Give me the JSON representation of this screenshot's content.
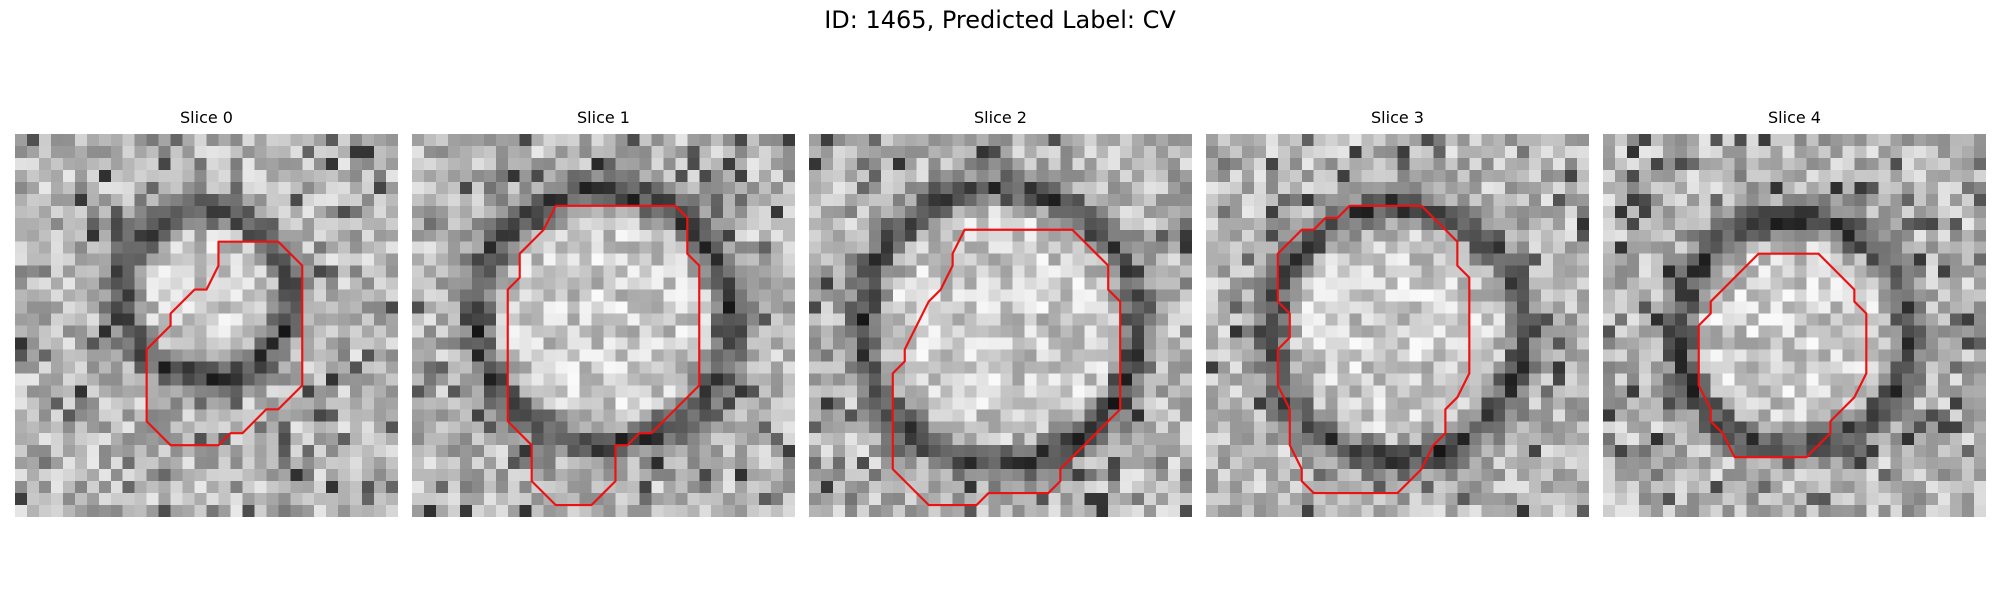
{
  "figure": {
    "title": "ID: 1465, Predicted Label: CV"
  },
  "panels": [
    {
      "title": "Slice 0",
      "seed": 11,
      "ring": [
        0.5,
        0.42,
        0.22
      ],
      "contour": [
        [
          17,
          9
        ],
        [
          22,
          9
        ],
        [
          24,
          11
        ],
        [
          24,
          21
        ],
        [
          22,
          23
        ],
        [
          21,
          23
        ],
        [
          19,
          25
        ],
        [
          18,
          25
        ],
        [
          17,
          26
        ],
        [
          13,
          26
        ],
        [
          12,
          25
        ],
        [
          11,
          24
        ],
        [
          11,
          18
        ],
        [
          13,
          16
        ],
        [
          13,
          15
        ],
        [
          15,
          13
        ],
        [
          16,
          13
        ],
        [
          17,
          11
        ]
      ]
    },
    {
      "title": "Slice 1",
      "seed": 23,
      "ring": [
        0.5,
        0.48,
        0.33
      ],
      "contour": [
        [
          12,
          6
        ],
        [
          22,
          6
        ],
        [
          23,
          7
        ],
        [
          23,
          10
        ],
        [
          24,
          11
        ],
        [
          24,
          21
        ],
        [
          22,
          23
        ],
        [
          20,
          25
        ],
        [
          19,
          25
        ],
        [
          18,
          26
        ],
        [
          17,
          26
        ],
        [
          17,
          29
        ],
        [
          16,
          30
        ],
        [
          15,
          31
        ],
        [
          12,
          31
        ],
        [
          10,
          29
        ],
        [
          10,
          26
        ],
        [
          9,
          25
        ],
        [
          8,
          24
        ],
        [
          8,
          13
        ],
        [
          9,
          12
        ],
        [
          9,
          10
        ],
        [
          10,
          9
        ],
        [
          11,
          8
        ]
      ]
    },
    {
      "title": "Slice 2",
      "seed": 37,
      "ring": [
        0.5,
        0.5,
        0.36
      ],
      "contour": [
        [
          13,
          8
        ],
        [
          22,
          8
        ],
        [
          24,
          10
        ],
        [
          25,
          11
        ],
        [
          25,
          13
        ],
        [
          26,
          14
        ],
        [
          26,
          23
        ],
        [
          23,
          26
        ],
        [
          21,
          28
        ],
        [
          21,
          29
        ],
        [
          20,
          30
        ],
        [
          18,
          30
        ],
        [
          15,
          30
        ],
        [
          14,
          31
        ],
        [
          13,
          31
        ],
        [
          10,
          31
        ],
        [
          7,
          28
        ],
        [
          7,
          20
        ],
        [
          8,
          19
        ],
        [
          8,
          18
        ],
        [
          9,
          16
        ],
        [
          10,
          14
        ],
        [
          11,
          13
        ],
        [
          12,
          11
        ],
        [
          12,
          10
        ]
      ]
    },
    {
      "title": "Slice 3",
      "seed": 51,
      "ring": [
        0.5,
        0.52,
        0.33
      ],
      "contour": [
        [
          13,
          6
        ],
        [
          18,
          6
        ],
        [
          20,
          8
        ],
        [
          21,
          9
        ],
        [
          21,
          11
        ],
        [
          22,
          12
        ],
        [
          22,
          20
        ],
        [
          21,
          22
        ],
        [
          20,
          23
        ],
        [
          20,
          25
        ],
        [
          19,
          26
        ],
        [
          18,
          28
        ],
        [
          17,
          29
        ],
        [
          16,
          30
        ],
        [
          13,
          30
        ],
        [
          12,
          30
        ],
        [
          9,
          30
        ],
        [
          8,
          29
        ],
        [
          8,
          28
        ],
        [
          7,
          26
        ],
        [
          7,
          23
        ],
        [
          6,
          21
        ],
        [
          6,
          18
        ],
        [
          7,
          17
        ],
        [
          7,
          15
        ],
        [
          6,
          14
        ],
        [
          6,
          10
        ],
        [
          7,
          9
        ],
        [
          8,
          8
        ],
        [
          9,
          8
        ],
        [
          10,
          7
        ],
        [
          11,
          7
        ],
        [
          12,
          6
        ]
      ]
    },
    {
      "title": "Slice 4",
      "seed": 67,
      "ring": [
        0.5,
        0.52,
        0.3
      ],
      "contour": [
        [
          12,
          11
        ],
        [
          13,
          10
        ],
        [
          18,
          10
        ],
        [
          19,
          11
        ],
        [
          20,
          12
        ],
        [
          21,
          13
        ],
        [
          21,
          14
        ],
        [
          22,
          15
        ],
        [
          22,
          20
        ],
        [
          21,
          22
        ],
        [
          20,
          23
        ],
        [
          19,
          24
        ],
        [
          19,
          25
        ],
        [
          18,
          26
        ],
        [
          17,
          27
        ],
        [
          11,
          27
        ],
        [
          10,
          25
        ],
        [
          9,
          24
        ],
        [
          9,
          23
        ],
        [
          8,
          21
        ],
        [
          8,
          16
        ],
        [
          9,
          15
        ],
        [
          9,
          14
        ],
        [
          10,
          13
        ],
        [
          11,
          12
        ]
      ]
    }
  ]
}
